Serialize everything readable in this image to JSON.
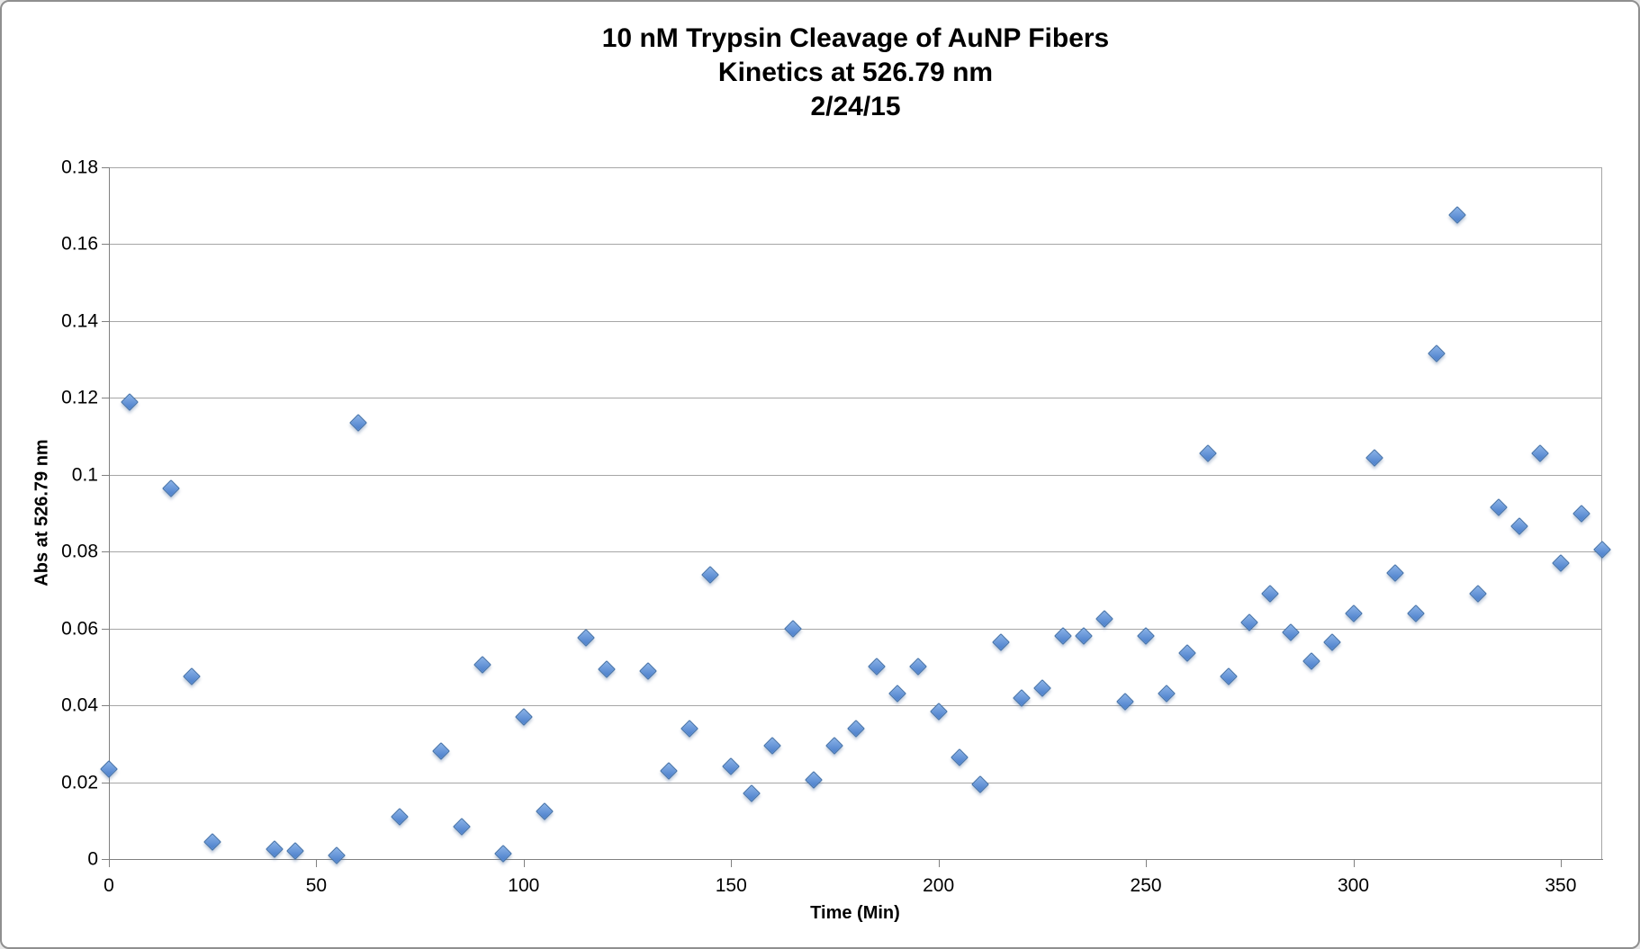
{
  "window": {
    "kind": "excel-chart-screenshot"
  },
  "chart": {
    "title_lines": [
      "10 nM Trypsin Cleavage of AuNP Fibers",
      "Kinetics at 526.79 nm",
      "2/24/15"
    ],
    "x_axis_title": "Time (Min)",
    "y_axis_title": "Abs at 526.79 nm",
    "x_tick_labels": [
      "0",
      "50",
      "100",
      "150",
      "200",
      "250",
      "300",
      "350"
    ],
    "x_tick_values": [
      0,
      50,
      100,
      150,
      200,
      250,
      300,
      350
    ],
    "y_tick_labels": [
      "0",
      "0.02",
      "0.04",
      "0.06",
      "0.08",
      "0.1",
      "0.12",
      "0.14",
      "0.16",
      "0.18"
    ],
    "y_tick_values": [
      0,
      0.02,
      0.04,
      0.06,
      0.08,
      0.1,
      0.12,
      0.14,
      0.16,
      0.18
    ],
    "colors": {
      "marker_fill_light": "#8AB2E8",
      "marker_fill_dark": "#5587CF",
      "marker_border": "#3E6DA5",
      "gridline": "#A6A6A6",
      "axis_line": "#808080",
      "text": "#000000"
    }
  },
  "chart_data": {
    "type": "scatter",
    "title": "10 nM Trypsin Cleavage of AuNP Fibers Kinetics at 526.79 nm 2/24/15",
    "xlabel": "Time (Min)",
    "ylabel": "Abs at 526.79 nm",
    "xlim": [
      0,
      360
    ],
    "ylim": [
      0,
      0.18
    ],
    "grid": "horizontal",
    "legend": "none",
    "marker": "diamond",
    "series": [
      {
        "name": "Abs at 526.79 nm",
        "x": [
          0,
          5,
          15,
          20,
          25,
          40,
          45,
          55,
          60,
          70,
          80,
          85,
          90,
          95,
          100,
          105,
          115,
          120,
          130,
          135,
          140,
          145,
          150,
          155,
          160,
          165,
          170,
          175,
          180,
          185,
          190,
          195,
          200,
          205,
          210,
          215,
          220,
          225,
          230,
          235,
          240,
          245,
          250,
          255,
          260,
          265,
          270,
          275,
          280,
          285,
          290,
          295,
          300,
          305,
          310,
          315,
          320,
          325,
          330,
          335,
          340,
          345,
          350,
          355,
          360
        ],
        "y": [
          0.0235,
          0.119,
          0.0965,
          0.0475,
          0.0045,
          0.0025,
          0.002,
          0.001,
          0.1135,
          0.011,
          0.028,
          0.0085,
          0.0505,
          0.0015,
          0.037,
          0.0125,
          0.0575,
          0.0495,
          0.049,
          0.023,
          0.034,
          0.074,
          0.024,
          0.017,
          0.0295,
          0.06,
          0.0205,
          0.0295,
          0.034,
          0.05,
          0.043,
          0.05,
          0.0385,
          0.0265,
          0.0195,
          0.0565,
          0.042,
          0.0445,
          0.058,
          0.058,
          0.0625,
          0.041,
          0.058,
          0.043,
          0.0535,
          0.1055,
          0.0475,
          0.0615,
          0.069,
          0.059,
          0.0515,
          0.0565,
          0.064,
          0.1045,
          0.0745,
          0.064,
          0.1315,
          0.1675,
          0.069,
          0.0915,
          0.0865,
          0.1055,
          0.077,
          0.09,
          0.0805
        ]
      }
    ]
  }
}
